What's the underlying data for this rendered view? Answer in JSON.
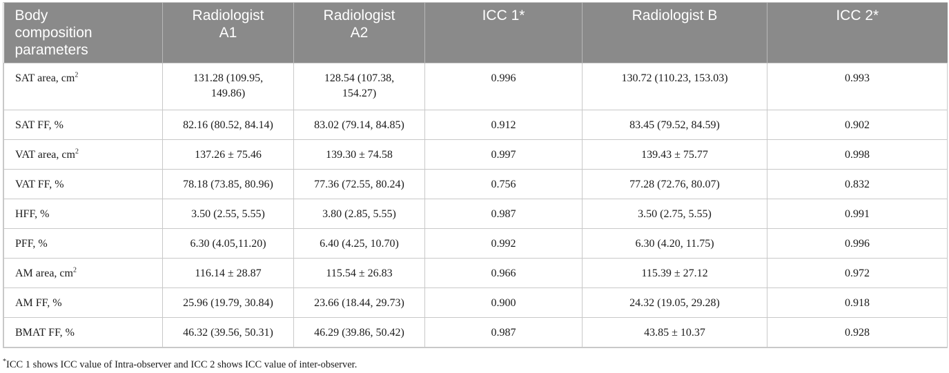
{
  "headers": [
    [
      "Body",
      "composition",
      "parameters"
    ],
    [
      "Radiologist",
      "A1"
    ],
    [
      "Radiologist",
      "A2"
    ],
    [
      "ICC 1*"
    ],
    [
      "Radiologist B"
    ],
    [
      "ICC 2*"
    ]
  ],
  "rows": [
    {
      "param": "SAT area, cm",
      "sup": "2",
      "a1": "131.28 (109.95, 149.86)",
      "a2": "128.54 (107.38, 154.27)",
      "icc1": "0.996",
      "b": "130.72 (110.23, 153.03)",
      "icc2": "0.993"
    },
    {
      "param": "SAT FF, %",
      "sup": "",
      "a1": "82.16 (80.52, 84.14)",
      "a2": "83.02 (79.14, 84.85)",
      "icc1": "0.912",
      "b": "83.45 (79.52, 84.59)",
      "icc2": "0.902"
    },
    {
      "param": "VAT area, cm",
      "sup": "2",
      "a1": "137.26 ± 75.46",
      "a2": "139.30 ± 74.58",
      "icc1": "0.997",
      "b": "139.43 ± 75.77",
      "icc2": "0.998"
    },
    {
      "param": "VAT FF, %",
      "sup": "",
      "a1": "78.18 (73.85, 80.96)",
      "a2": "77.36 (72.55, 80.24)",
      "icc1": "0.756",
      "b": "77.28 (72.76, 80.07)",
      "icc2": "0.832"
    },
    {
      "param": "HFF, %",
      "sup": "",
      "a1": "3.50 (2.55, 5.55)",
      "a2": "3.80 (2.85, 5.55)",
      "icc1": "0.987",
      "b": "3.50 (2.75, 5.55)",
      "icc2": "0.991"
    },
    {
      "param": "PFF, %",
      "sup": "",
      "a1": "6.30 (4.05,11.20)",
      "a2": "6.40 (4.25, 10.70)",
      "icc1": "0.992",
      "b": "6.30 (4.20, 11.75)",
      "icc2": "0.996"
    },
    {
      "param": "AM area, cm",
      "sup": "2",
      "a1": "116.14 ± 28.87",
      "a2": "115.54 ± 26.83",
      "icc1": "0.966",
      "b": "115.39 ± 27.12",
      "icc2": "0.972"
    },
    {
      "param": "AM FF, %",
      "sup": "",
      "a1": "25.96 (19.79, 30.84)",
      "a2": "23.66 (18.44, 29.73)",
      "icc1": "0.900",
      "b": "24.32 (19.05, 29.28)",
      "icc2": "0.918"
    },
    {
      "param": "BMAT FF, %",
      "sup": "",
      "a1": "46.32 (39.56, 50.31)",
      "a2": "46.29 (39.86, 50.42)",
      "icc1": "0.987",
      "b": "43.85 ± 10.37",
      "icc2": "0.928"
    }
  ],
  "footnote": {
    "mark": "*",
    "text": "ICC 1 shows ICC value of Intra-observer and ICC 2 shows ICC value of inter-observer."
  }
}
